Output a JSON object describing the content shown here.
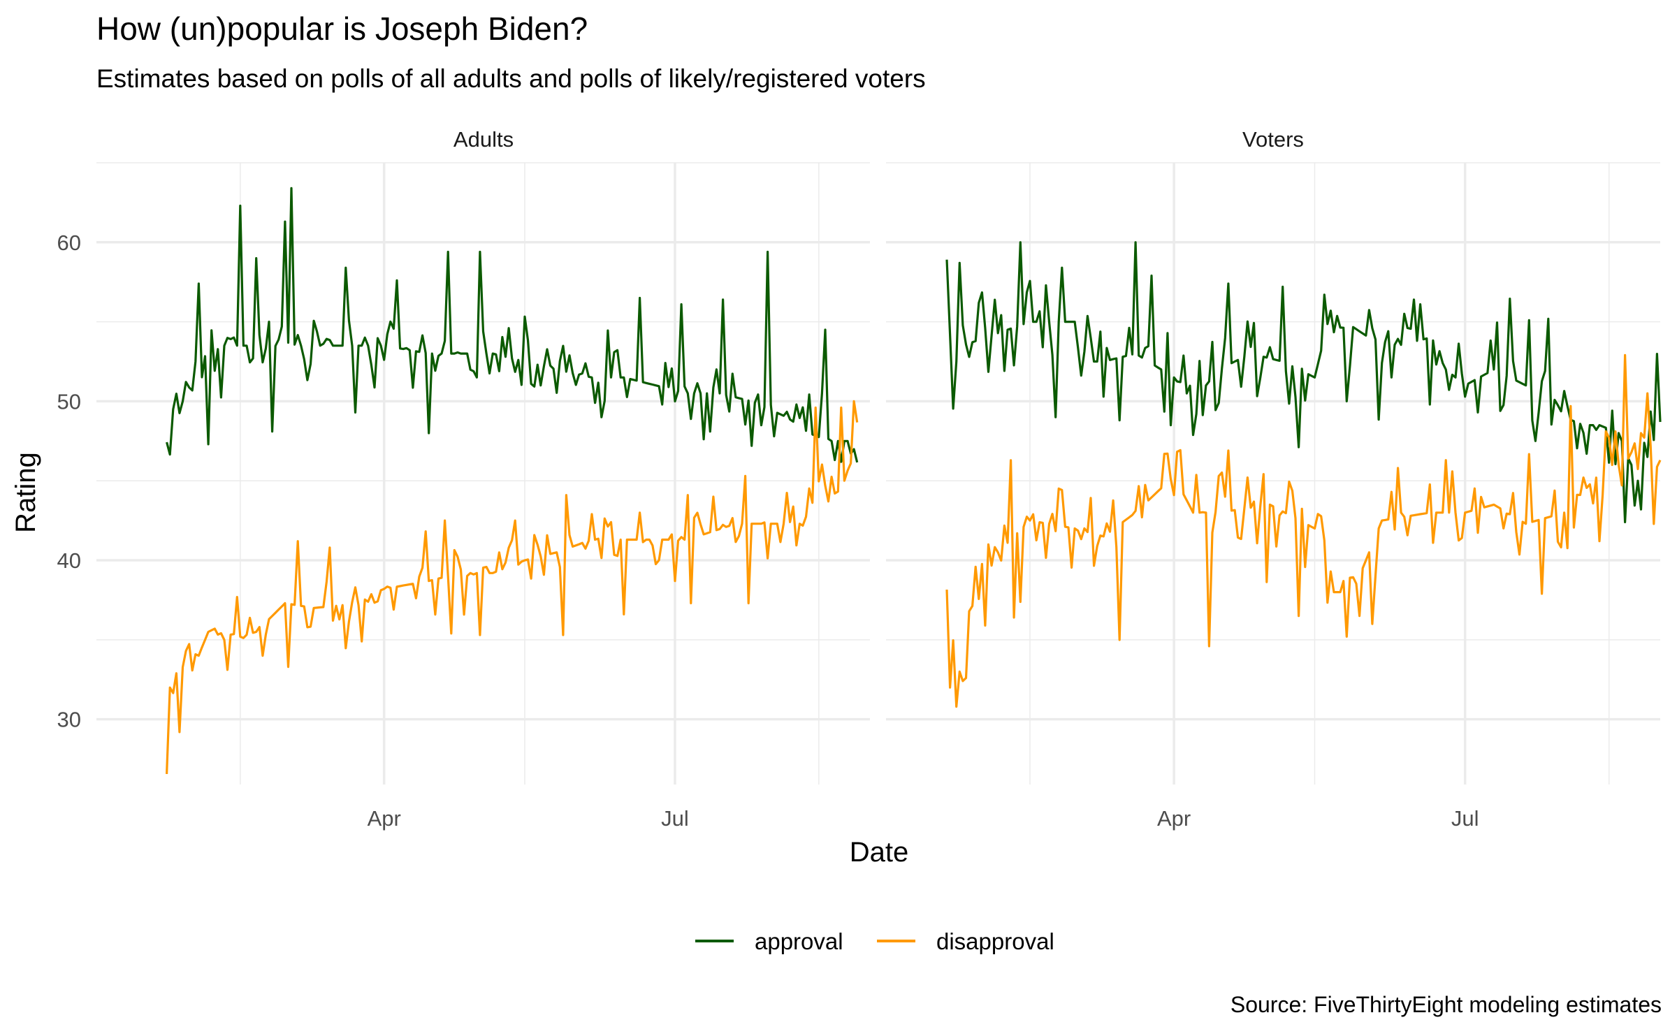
{
  "title": "How (un)popular is Joseph Biden?",
  "subtitle": "Estimates based on polls of all adults and polls of likely/registered voters",
  "caption": "Source: FiveThirtyEight modeling estimates",
  "colors": {
    "approval": "#0b5a00",
    "disapproval": "#ff9900",
    "grid": "#ebebeb"
  },
  "chart_data": {
    "type": "line",
    "xlabel": "Date",
    "ylabel": "Rating",
    "x_ticks": [
      "Apr",
      "Jul"
    ],
    "x_tick_dates": [
      "2021-04-01",
      "2021-07-01"
    ],
    "xlim": [
      "2021-01-01",
      "2021-08-31"
    ],
    "y_ticks": [
      30,
      40,
      50,
      60
    ],
    "ylim": [
      25.9,
      65
    ],
    "grid": true,
    "legend_position": "bottom",
    "legend": [
      "approval",
      "disapproval"
    ],
    "panels": [
      {
        "name": "Adults",
        "series": [
          {
            "name": "approval",
            "x_start": "2021-01-23",
            "x_end": "2021-08-27",
            "points": [
              [
                "2021-01-23",
                46.4
              ],
              [
                "2021-01-25",
                49.5
              ],
              [
                "2021-02-01",
                52.5
              ],
              [
                "2021-02-10",
                53.5
              ],
              [
                "2021-02-20",
                53.5
              ],
              [
                "2021-02-25",
                54.0
              ],
              [
                "2021-03-05",
                53.5
              ],
              [
                "2021-03-15",
                53.5
              ],
              [
                "2021-03-25",
                53.5
              ],
              [
                "2021-04-01",
                53.5
              ],
              [
                "2021-04-15",
                53.0
              ],
              [
                "2021-04-25",
                53.0
              ],
              [
                "2021-05-05",
                53.0
              ],
              [
                "2021-05-15",
                52.5
              ],
              [
                "2021-05-25",
                52.0
              ],
              [
                "2021-06-05",
                51.5
              ],
              [
                "2021-06-15",
                51.5
              ],
              [
                "2021-06-25",
                51.0
              ],
              [
                "2021-07-05",
                50.5
              ],
              [
                "2021-07-15",
                50.5
              ],
              [
                "2021-07-25",
                50.0
              ],
              [
                "2021-08-05",
                49.0
              ],
              [
                "2021-08-12",
                48.0
              ],
              [
                "2021-08-18",
                47.5
              ],
              [
                "2021-08-24",
                47.5
              ],
              [
                "2021-08-27",
                44.5
              ]
            ],
            "spikes": [
              [
                "2021-02-15",
                62.3
              ],
              [
                "2021-03-03",
                63.4
              ],
              [
                "2021-03-01",
                61.3
              ],
              [
                "2021-02-20",
                59.0
              ],
              [
                "2021-03-20",
                58.4
              ],
              [
                "2021-04-21",
                59.4
              ],
              [
                "2021-04-05",
                57.6
              ],
              [
                "2021-05-01",
                59.4
              ],
              [
                "2021-06-20",
                56.5
              ],
              [
                "2021-07-03",
                56.1
              ],
              [
                "2021-07-16",
                56.4
              ],
              [
                "2021-07-30",
                59.4
              ],
              [
                "2021-08-17",
                54.5
              ],
              [
                "2021-02-02",
                57.4
              ],
              [
                "2021-05-10",
                54.6
              ],
              [
                "2021-04-15",
                48.0
              ],
              [
                "2021-03-23",
                49.3
              ],
              [
                "2021-02-25",
                48.1
              ],
              [
                "2021-02-05",
                47.3
              ],
              [
                "2021-06-08",
                49.0
              ],
              [
                "2021-07-12",
                48.1
              ],
              [
                "2021-07-25",
                47.2
              ],
              [
                "2021-06-27",
                49.8
              ],
              [
                "2021-08-08",
                49.8
              ],
              [
                "2021-01-28",
                50.0
              ],
              [
                "2021-05-20",
                51.0
              ]
            ]
          },
          {
            "name": "disapproval",
            "x_start": "2021-01-23",
            "x_end": "2021-08-27",
            "points": [
              [
                "2021-01-23",
                27.6
              ],
              [
                "2021-01-24",
                32.0
              ],
              [
                "2021-01-26",
                31.3
              ],
              [
                "2021-01-27",
                29.2
              ],
              [
                "2021-01-29",
                34.3
              ],
              [
                "2021-02-01",
                33.5
              ],
              [
                "2021-02-05",
                35.5
              ],
              [
                "2021-02-10",
                36.0
              ],
              [
                "2021-02-15",
                35.2
              ],
              [
                "2021-02-20",
                35.5
              ],
              [
                "2021-03-01",
                37.3
              ],
              [
                "2021-03-10",
                37.0
              ],
              [
                "2021-03-20",
                37.2
              ],
              [
                "2021-04-01",
                38.2
              ],
              [
                "2021-04-15",
                38.7
              ],
              [
                "2021-04-25",
                39.2
              ],
              [
                "2021-05-05",
                39.2
              ],
              [
                "2021-05-15",
                40.0
              ],
              [
                "2021-05-25",
                40.5
              ],
              [
                "2021-06-05",
                41.3
              ],
              [
                "2021-06-20",
                41.3
              ],
              [
                "2021-07-05",
                41.3
              ],
              [
                "2021-07-20",
                42.3
              ],
              [
                "2021-08-01",
                42.3
              ],
              [
                "2021-08-10",
                42.3
              ],
              [
                "2021-08-15",
                44.5
              ],
              [
                "2021-08-20",
                45.0
              ],
              [
                "2021-08-24",
                45.0
              ],
              [
                "2021-08-27",
                48.3
              ]
            ],
            "spikes": [
              [
                "2021-03-05",
                41.2
              ],
              [
                "2021-03-15",
                40.8
              ],
              [
                "2021-04-20",
                42.5
              ],
              [
                "2021-05-12",
                42.5
              ],
              [
                "2021-05-28",
                44.1
              ],
              [
                "2021-06-05",
                42.9
              ],
              [
                "2021-06-20",
                43.0
              ],
              [
                "2021-07-13",
                44.0
              ],
              [
                "2021-07-23",
                45.3
              ],
              [
                "2021-08-14",
                49.6
              ],
              [
                "2021-08-22",
                49.6
              ],
              [
                "2021-08-26",
                50.0
              ],
              [
                "2021-03-02",
                33.3
              ],
              [
                "2021-02-22",
                34.0
              ],
              [
                "2021-03-25",
                34.9
              ],
              [
                "2021-04-22",
                35.4
              ],
              [
                "2021-05-01",
                35.3
              ],
              [
                "2021-05-27",
                35.3
              ],
              [
                "2021-06-15",
                36.6
              ],
              [
                "2021-07-06",
                37.3
              ],
              [
                "2021-07-24",
                37.3
              ],
              [
                "2021-08-18",
                43.7
              ]
            ]
          }
        ]
      },
      {
        "name": "Voters",
        "series": [
          {
            "name": "approval",
            "x_start": "2021-01-20",
            "x_end": "2021-08-31",
            "points": [
              [
                "2021-01-20",
                56.4
              ],
              [
                "2021-01-22",
                52.0
              ],
              [
                "2021-01-25",
                53.5
              ],
              [
                "2021-02-01",
                54.0
              ],
              [
                "2021-02-15",
                55.0
              ],
              [
                "2021-03-01",
                55.0
              ],
              [
                "2021-03-05",
                52.5
              ],
              [
                "2021-03-10",
                52.5
              ],
              [
                "2021-03-20",
                53.0
              ],
              [
                "2021-04-01",
                51.5
              ],
              [
                "2021-04-07",
                50.0
              ],
              [
                "2021-04-15",
                52.0
              ],
              [
                "2021-04-25",
                53.0
              ],
              [
                "2021-05-05",
                52.5
              ],
              [
                "2021-05-15",
                51.5
              ],
              [
                "2021-05-20",
                55.7
              ],
              [
                "2021-05-23",
                55.2
              ],
              [
                "2021-06-01",
                54.0
              ],
              [
                "2021-06-10",
                53.5
              ],
              [
                "2021-06-20",
                54.0
              ],
              [
                "2021-06-25",
                52.0
              ],
              [
                "2021-07-01",
                51.0
              ],
              [
                "2021-07-10",
                52.0
              ],
              [
                "2021-07-15",
                51.5
              ],
              [
                "2021-07-20",
                51.0
              ],
              [
                "2021-07-28",
                50.5
              ],
              [
                "2021-08-01",
                49.0
              ],
              [
                "2021-08-07",
                48.5
              ],
              [
                "2021-08-12",
                48.5
              ],
              [
                "2021-08-18",
                48.0
              ],
              [
                "2021-08-24",
                45.0
              ],
              [
                "2021-08-28",
                47.0
              ],
              [
                "2021-08-31",
                48.7
              ]
            ],
            "spikes": [
              [
                "2021-02-12",
                60.0
              ],
              [
                "2021-03-20",
                60.0
              ],
              [
                "2021-01-24",
                58.7
              ],
              [
                "2021-02-25",
                58.4
              ],
              [
                "2021-03-25",
                57.9
              ],
              [
                "2021-04-18",
                57.4
              ],
              [
                "2021-05-05",
                57.2
              ],
              [
                "2021-05-18",
                56.7
              ],
              [
                "2021-06-15",
                56.4
              ],
              [
                "2021-07-21",
                55.1
              ],
              [
                "2021-06-02",
                54.6
              ],
              [
                "2021-03-15",
                48.8
              ],
              [
                "2021-02-23",
                49.0
              ],
              [
                "2021-04-08",
                49.2
              ],
              [
                "2021-05-25",
                50.0
              ],
              [
                "2021-07-23",
                47.5
              ],
              [
                "2021-08-02",
                49.7
              ],
              [
                "2021-08-20",
                42.4
              ],
              [
                "2021-06-20",
                49.8
              ],
              [
                "2021-07-05",
                49.3
              ]
            ]
          },
          {
            "name": "disapproval",
            "x_start": "2021-01-20",
            "x_end": "2021-08-31",
            "points": [
              [
                "2021-01-20",
                39.0
              ],
              [
                "2021-01-21",
                32.0
              ],
              [
                "2021-01-22",
                34.0
              ],
              [
                "2021-01-25",
                36.0
              ],
              [
                "2021-01-30",
                38.0
              ],
              [
                "2021-02-05",
                40.5
              ],
              [
                "2021-02-15",
                42.5
              ],
              [
                "2021-03-01",
                42.0
              ],
              [
                "2021-03-10",
                41.5
              ],
              [
                "2021-03-20",
                43.0
              ],
              [
                "2021-04-01",
                45.3
              ],
              [
                "2021-04-07",
                43.0
              ],
              [
                "2021-04-15",
                43.0
              ],
              [
                "2021-05-01",
                43.5
              ],
              [
                "2021-05-15",
                42.0
              ],
              [
                "2021-05-21",
                38.0
              ],
              [
                "2021-05-27",
                38.0
              ],
              [
                "2021-06-05",
                42.5
              ],
              [
                "2021-06-20",
                43.0
              ],
              [
                "2021-07-01",
                43.0
              ],
              [
                "2021-07-10",
                43.5
              ],
              [
                "2021-07-20",
                42.3
              ],
              [
                "2021-08-01",
                43.0
              ],
              [
                "2021-08-10",
                45.0
              ],
              [
                "2021-08-15",
                46.0
              ],
              [
                "2021-08-20",
                46.0
              ],
              [
                "2021-08-25",
                48.0
              ],
              [
                "2021-08-31",
                46.3
              ]
            ],
            "spikes": [
              [
                "2021-01-23",
                30.8
              ],
              [
                "2021-01-24",
                33.0
              ],
              [
                "2021-01-26",
                32.6
              ],
              [
                "2021-02-01",
                35.9
              ],
              [
                "2021-02-10",
                36.4
              ],
              [
                "2021-03-15",
                35.0
              ],
              [
                "2021-04-12",
                34.6
              ],
              [
                "2021-04-18",
                46.9
              ],
              [
                "2021-05-10",
                36.5
              ],
              [
                "2021-05-25",
                35.2
              ],
              [
                "2021-06-10",
                45.8
              ],
              [
                "2021-06-25",
                46.3
              ],
              [
                "2021-07-25",
                37.9
              ],
              [
                "2021-08-03",
                49.7
              ],
              [
                "2021-08-20",
                52.9
              ],
              [
                "2021-08-27",
                50.5
              ],
              [
                "2021-06-02",
                36.0
              ],
              [
                "2021-08-12",
                41.2
              ]
            ]
          }
        ]
      }
    ]
  }
}
